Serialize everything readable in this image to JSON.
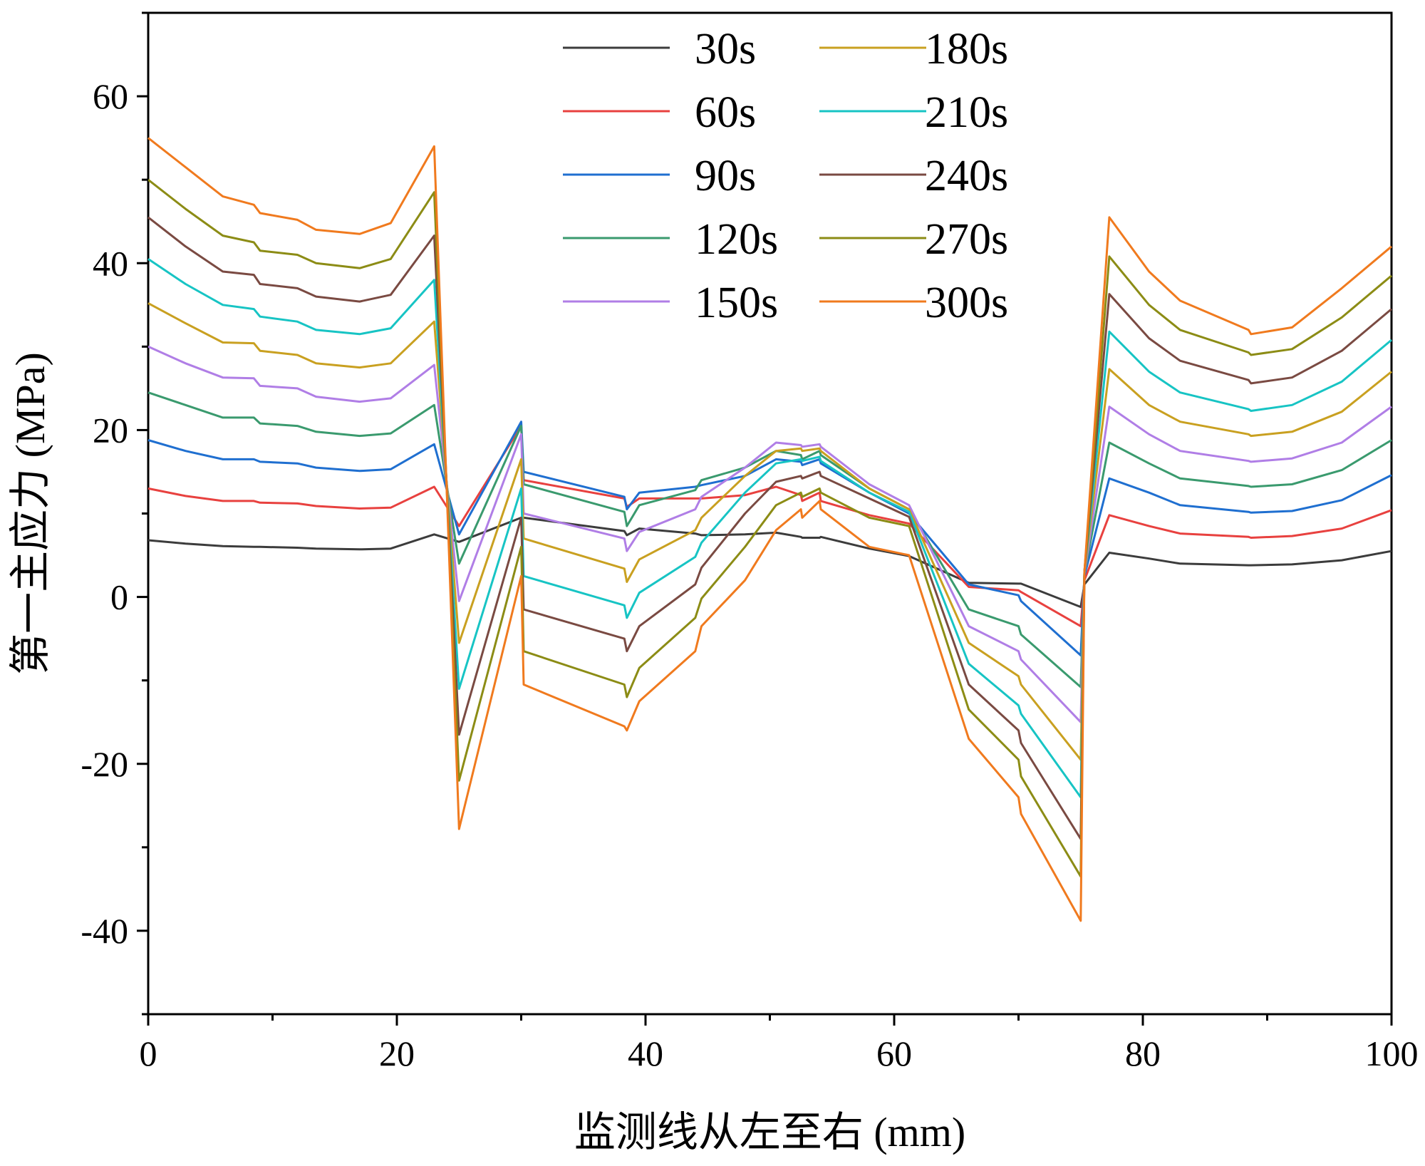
{
  "chart_data": {
    "type": "line",
    "title": "",
    "xlabel": "监测线从左至右 (mm)",
    "ylabel": "第一主应力 (MPa)",
    "xlim": [
      0,
      100
    ],
    "ylim": [
      -50,
      70
    ],
    "xticks": [
      0,
      20,
      40,
      60,
      80,
      100
    ],
    "yticks": [
      -40,
      -20,
      0,
      20,
      40,
      60
    ],
    "x_tick_labels": [
      "0",
      "20",
      "40",
      "60",
      "80",
      "100"
    ],
    "y_tick_labels": [
      "-40",
      "-20",
      "0",
      "20",
      "40",
      "60"
    ],
    "legend_position": "top-center",
    "x": [
      0,
      3,
      6,
      8.5,
      9,
      12,
      13.5,
      17,
      19.5,
      23,
      25,
      30,
      30.2,
      38.3,
      38.5,
      39.5,
      44,
      44.5,
      48,
      50.5,
      52.5,
      52.6,
      54,
      54.1,
      58,
      61.2,
      66,
      70,
      70.2,
      75,
      75.3,
      77.3,
      80.5,
      83,
      88.5,
      88.7,
      92,
      96,
      100
    ],
    "series": [
      {
        "name": "30s",
        "color": "#3c3c3c",
        "values": [
          6.8,
          6.4,
          6.1,
          6.0,
          6.0,
          5.9,
          5.8,
          5.7,
          5.8,
          7.5,
          6.6,
          9.5,
          9.5,
          7.9,
          7.4,
          8.2,
          7.6,
          7.4,
          7.5,
          7.7,
          7.2,
          7.1,
          7.1,
          7.2,
          5.8,
          4.9,
          1.7,
          1.6,
          1.6,
          -1.2,
          1.5,
          5.3,
          4.6,
          4.0,
          3.8,
          3.8,
          3.9,
          4.4,
          5.5
        ]
      },
      {
        "name": "60s",
        "color": "#e8413f",
        "values": [
          13.0,
          12.1,
          11.5,
          11.5,
          11.3,
          11.2,
          10.9,
          10.6,
          10.7,
          13.2,
          8.5,
          20.5,
          14.0,
          11.8,
          10.8,
          11.8,
          11.8,
          11.8,
          12.2,
          13.2,
          12.2,
          11.5,
          12.5,
          11.5,
          9.8,
          8.8,
          1.2,
          0.8,
          0.6,
          -3.5,
          2.0,
          9.8,
          8.5,
          7.6,
          7.2,
          7.1,
          7.3,
          8.2,
          10.4
        ]
      },
      {
        "name": "90s",
        "color": "#1f6fd0",
        "values": [
          18.8,
          17.5,
          16.5,
          16.5,
          16.2,
          16.0,
          15.5,
          15.1,
          15.3,
          18.3,
          7.5,
          21.0,
          15.0,
          12.0,
          10.5,
          12.5,
          13.2,
          13.4,
          14.5,
          16.5,
          16.2,
          15.8,
          16.5,
          16.0,
          12.5,
          10.0,
          1.5,
          0.2,
          -0.5,
          -7.0,
          2.5,
          14.2,
          12.5,
          11.0,
          10.2,
          10.1,
          10.3,
          11.6,
          14.6
        ]
      },
      {
        "name": "120s",
        "color": "#3a9a6e",
        "values": [
          24.5,
          23.0,
          21.5,
          21.5,
          20.8,
          20.5,
          19.8,
          19.3,
          19.6,
          23.0,
          4.0,
          20.5,
          13.5,
          10.2,
          8.5,
          11.0,
          12.8,
          14.0,
          15.5,
          17.5,
          17.0,
          16.5,
          17.5,
          17.0,
          13.0,
          10.5,
          -1.5,
          -3.5,
          -4.5,
          -10.8,
          2.8,
          18.5,
          16.0,
          14.2,
          13.3,
          13.2,
          13.5,
          15.2,
          18.8
        ]
      },
      {
        "name": "150s",
        "color": "#b07ee6",
        "values": [
          30.0,
          28.0,
          26.3,
          26.2,
          25.3,
          25.0,
          24.0,
          23.4,
          23.8,
          27.8,
          -0.5,
          19.5,
          10.0,
          7.0,
          5.5,
          7.8,
          10.5,
          12.0,
          15.5,
          18.5,
          18.2,
          18.0,
          18.3,
          18.0,
          13.5,
          11.0,
          -3.5,
          -6.5,
          -7.5,
          -15.0,
          2.8,
          22.8,
          19.5,
          17.5,
          16.3,
          16.2,
          16.6,
          18.5,
          22.8
        ]
      },
      {
        "name": "180s",
        "color": "#c9a020",
        "values": [
          35.2,
          32.8,
          30.5,
          30.4,
          29.5,
          29.0,
          28.0,
          27.5,
          28.0,
          33.0,
          -5.5,
          16.5,
          7.0,
          3.4,
          1.8,
          4.5,
          8.0,
          9.5,
          14.5,
          17.5,
          17.8,
          17.5,
          17.8,
          17.5,
          13.0,
          10.5,
          -5.5,
          -9.5,
          -10.5,
          -19.5,
          3.0,
          27.3,
          23.0,
          21.0,
          19.5,
          19.3,
          19.8,
          22.2,
          27.0
        ]
      },
      {
        "name": "210s",
        "color": "#17c4c4",
        "values": [
          40.5,
          37.5,
          35.0,
          34.5,
          33.6,
          33.0,
          32.0,
          31.5,
          32.2,
          38.0,
          -11.0,
          13.0,
          2.5,
          -1.0,
          -2.5,
          0.5,
          4.8,
          6.5,
          12.5,
          16.0,
          16.5,
          16.3,
          16.8,
          16.3,
          12.5,
          10.2,
          -8.0,
          -13.0,
          -14.0,
          -24.0,
          3.0,
          31.8,
          27.0,
          24.5,
          22.5,
          22.3,
          23.0,
          25.8,
          30.8
        ]
      },
      {
        "name": "240s",
        "color": "#7a4a42",
        "values": [
          45.5,
          42.0,
          39.0,
          38.6,
          37.5,
          37.0,
          36.0,
          35.4,
          36.2,
          43.3,
          -16.5,
          9.5,
          -1.5,
          -5.0,
          -6.5,
          -3.5,
          1.5,
          3.5,
          10.0,
          13.8,
          14.5,
          14.2,
          15.0,
          14.5,
          11.8,
          9.6,
          -10.5,
          -16.0,
          -17.5,
          -29.0,
          3.0,
          36.3,
          31.0,
          28.3,
          26.0,
          25.6,
          26.3,
          29.5,
          34.5
        ]
      },
      {
        "name": "270s",
        "color": "#8c8c15",
        "values": [
          50.0,
          46.5,
          43.3,
          42.5,
          41.5,
          41.0,
          40.0,
          39.4,
          40.5,
          48.5,
          -22.0,
          6.0,
          -6.5,
          -10.5,
          -12.0,
          -8.5,
          -2.5,
          -0.2,
          6.0,
          11.0,
          12.5,
          12.0,
          13.0,
          12.5,
          9.5,
          8.5,
          -13.5,
          -19.5,
          -21.5,
          -33.5,
          3.0,
          40.8,
          35.0,
          32.0,
          29.3,
          29.0,
          29.7,
          33.5,
          38.5
        ]
      },
      {
        "name": "300s",
        "color": "#f07a1e",
        "values": [
          55.0,
          51.5,
          48.0,
          47.0,
          46.0,
          45.2,
          44.0,
          43.5,
          44.8,
          54.0,
          -27.8,
          2.5,
          -10.5,
          -15.5,
          -16.0,
          -12.5,
          -6.5,
          -3.5,
          2.0,
          8.0,
          10.5,
          9.5,
          11.5,
          10.5,
          6.0,
          5.0,
          -17.0,
          -24.0,
          -26.0,
          -38.8,
          3.0,
          45.5,
          39.0,
          35.5,
          32.0,
          31.5,
          32.3,
          37.0,
          42.0
        ]
      }
    ]
  }
}
